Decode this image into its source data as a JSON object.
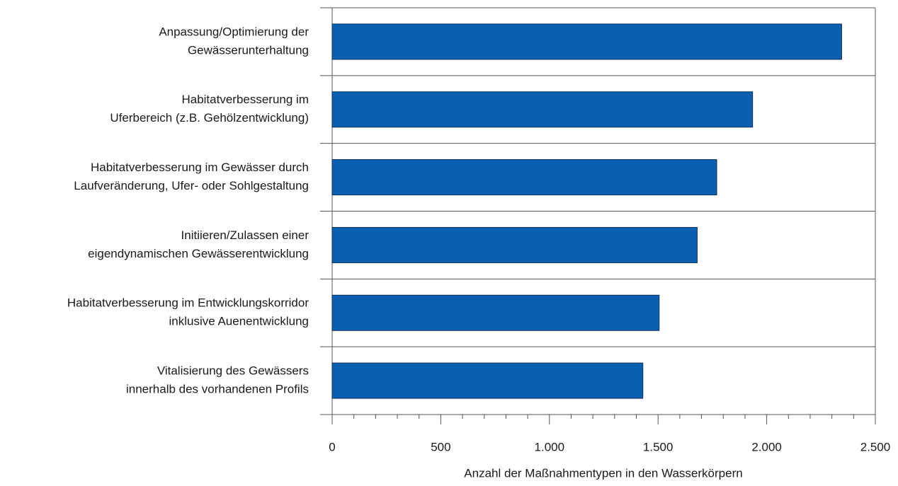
{
  "chart_data": {
    "type": "barh",
    "categories": [
      [
        "Anpassung/Optimierung der",
        "Gewässerunterhaltung"
      ],
      [
        "Habitatverbesserung im",
        "Uferbereich (z.B. Gehölzentwicklung)"
      ],
      [
        "Habitatverbesserung im Gewässer durch",
        "Laufveränderung, Ufer- oder Sohlgestaltung"
      ],
      [
        "Initiieren/Zulassen einer",
        "eigendynamischen Gewässerentwicklung"
      ],
      [
        "Habitatverbesserung im Entwicklungskorridor",
        "inklusive Auenentwicklung"
      ],
      [
        "Vitalisierung des Gewässers",
        "innerhalb des vorhandenen Profils"
      ]
    ],
    "values": [
      2345,
      1935,
      1770,
      1680,
      1505,
      1430
    ],
    "color": "#0a5fb0",
    "xlabel": "Anzahl der Maßnahmentypen in den Wasserkörpern",
    "xlim": [
      0,
      2500
    ],
    "xticks": [
      0,
      500,
      {
        "value": 1000,
        "label": "1.000"
      },
      {
        "value": 1500,
        "label": "1.500"
      },
      {
        "value": 2000,
        "label": "2.000"
      },
      {
        "value": 2500,
        "label": "2.500"
      }
    ],
    "xminorticks": [
      100,
      200,
      300,
      400,
      600,
      700,
      800,
      900,
      1100,
      1200,
      1300,
      1400,
      1600,
      1700,
      1800,
      1900,
      2100,
      2200,
      2300,
      2400
    ]
  }
}
